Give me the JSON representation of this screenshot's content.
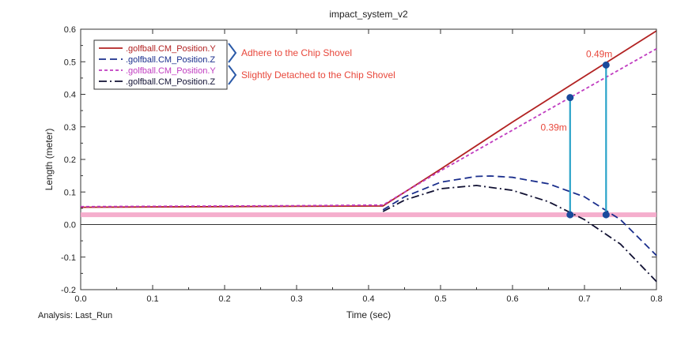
{
  "footer": {
    "analysis_label": "Analysis:  Last_Run"
  },
  "colors": {
    "series_1": "#b22222",
    "series_2": "#1a2e8c",
    "series_3": "#c03cc0",
    "series_4": "#111133",
    "threshold": "#f4a6c8",
    "marker": "#2aa3c9",
    "marker_dot": "#1a4a9c",
    "annotation": "#e8483c",
    "bracket": "#2b5aa8"
  },
  "chart_data": {
    "type": "line",
    "title": "impact_system_v2",
    "xlabel": "Time (sec)",
    "ylabel": "Length (meter)",
    "xlim": [
      0.0,
      0.8
    ],
    "ylim": [
      -0.2,
      0.6
    ],
    "x_ticks": [
      "0.0",
      "0.1",
      "0.2",
      "0.3",
      "0.4",
      "0.5",
      "0.6",
      "0.7",
      "0.8"
    ],
    "y_ticks": [
      "-0.2",
      "-0.1",
      "0.0",
      "0.1",
      "0.2",
      "0.3",
      "0.4",
      "0.5",
      "0.6"
    ],
    "grid": false,
    "legend_position": "top-left",
    "series": [
      {
        "name": ".golfball.CM_Position.Y",
        "style": "solid",
        "x": [
          0.0,
          0.1,
          0.2,
          0.3,
          0.42,
          0.5,
          0.6,
          0.7,
          0.8
        ],
        "y": [
          0.053,
          0.054,
          0.055,
          0.056,
          0.057,
          0.17,
          0.315,
          0.455,
          0.595
        ]
      },
      {
        "name": ".golfball.CM_Position.Z",
        "style": "dashed",
        "x": [
          0.42,
          0.45,
          0.5,
          0.55,
          0.57,
          0.6,
          0.65,
          0.7,
          0.75,
          0.8
        ],
        "y": [
          0.045,
          0.085,
          0.13,
          0.148,
          0.149,
          0.145,
          0.125,
          0.085,
          0.015,
          -0.095
        ]
      },
      {
        "name": ".golfball.CM_Position.Y",
        "style": "dotted",
        "x": [
          0.0,
          0.1,
          0.2,
          0.3,
          0.42,
          0.5,
          0.6,
          0.7,
          0.8
        ],
        "y": [
          0.055,
          0.056,
          0.057,
          0.058,
          0.06,
          0.165,
          0.29,
          0.415,
          0.54
        ]
      },
      {
        "name": ".golfball.CM_Position.Z",
        "style": "dashdot",
        "x": [
          0.42,
          0.45,
          0.5,
          0.55,
          0.6,
          0.65,
          0.7,
          0.75,
          0.8
        ],
        "y": [
          0.04,
          0.075,
          0.11,
          0.12,
          0.105,
          0.07,
          0.015,
          -0.06,
          -0.175
        ]
      }
    ],
    "threshold": {
      "y": 0.03
    },
    "legend_notes": [
      {
        "text": "Adhere to the Chip Shovel",
        "series": [
          0,
          1
        ]
      },
      {
        "text": "Slightly Detached to the Chip Shovel",
        "series": [
          2,
          3
        ]
      }
    ],
    "markers": [
      {
        "x": 0.68,
        "y_top": 0.39,
        "y_bottom": 0.03,
        "label": "0.39m"
      },
      {
        "x": 0.73,
        "y_top": 0.49,
        "y_bottom": 0.03,
        "label": "0.49m"
      }
    ]
  }
}
